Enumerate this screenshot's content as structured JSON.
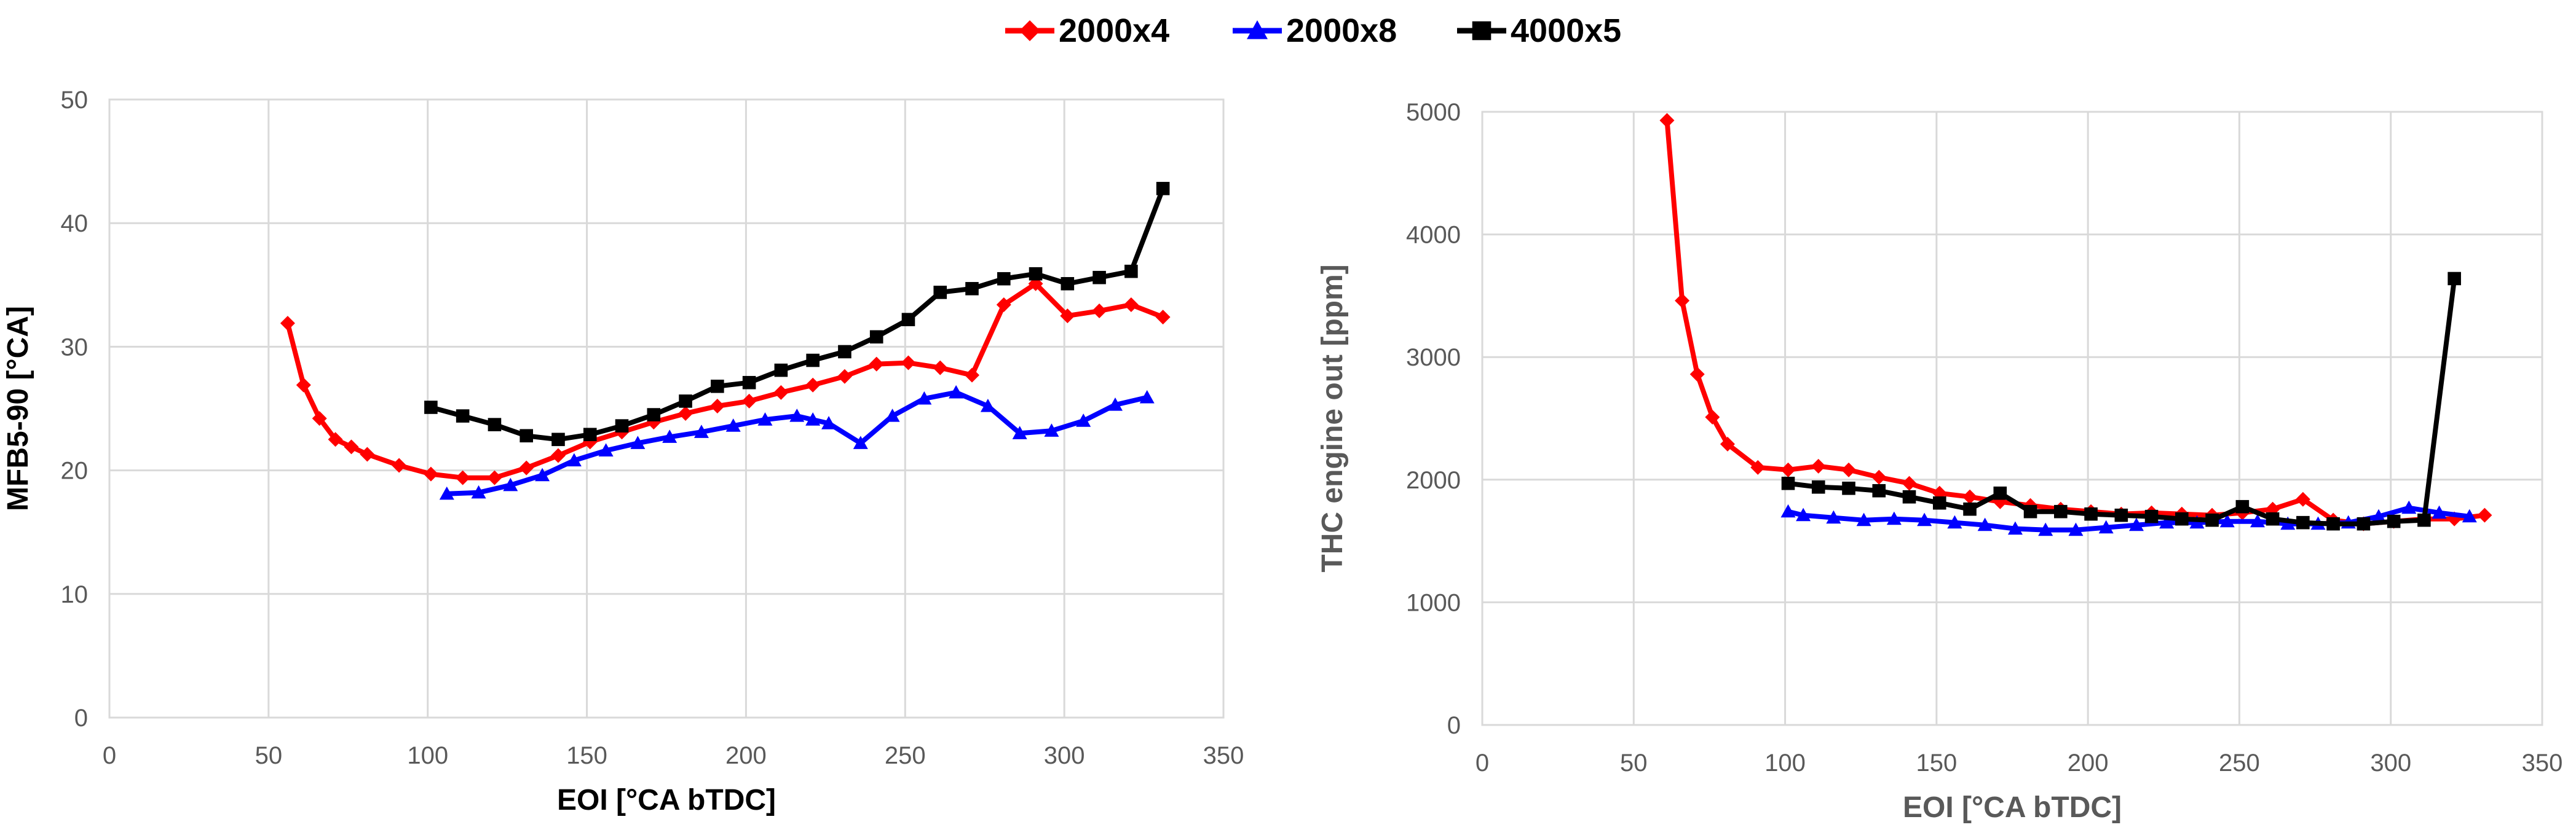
{
  "legend": {
    "entries": [
      {
        "name": "2000x4",
        "color": "#ff0000",
        "marker": "diamond"
      },
      {
        "name": "2000x8",
        "color": "#0000ff",
        "marker": "triangle"
      },
      {
        "name": "4000x5",
        "color": "#000000",
        "marker": "square"
      }
    ],
    "placement": "top-center"
  },
  "chart_data": [
    {
      "type": "line",
      "title": "",
      "xlabel": "EOI [°CA bTDC]",
      "ylabel": "MFB5-90 [°CA]",
      "xlim": [
        0,
        350
      ],
      "ylim": [
        0,
        50
      ],
      "xticks": [
        0,
        50,
        100,
        150,
        200,
        250,
        300,
        350
      ],
      "yticks": [
        0,
        10,
        20,
        30,
        40,
        50
      ],
      "grid": true,
      "series": [
        {
          "name": "2000x4",
          "color": "#ff0000",
          "marker": "diamond",
          "x": [
            56,
            61,
            66,
            71,
            76,
            81,
            91,
            101,
            111,
            121,
            131,
            141,
            151,
            161,
            171,
            181,
            191,
            201,
            211,
            221,
            231,
            241,
            251,
            261,
            271,
            281,
            291,
            301,
            311,
            321,
            331
          ],
          "y": [
            31.9,
            26.9,
            24.2,
            22.5,
            21.9,
            21.3,
            20.4,
            19.7,
            19.4,
            19.4,
            20.2,
            21.2,
            22.3,
            23.1,
            23.9,
            24.6,
            25.2,
            25.6,
            26.3,
            26.9,
            27.6,
            28.6,
            28.7,
            28.3,
            27.7,
            33.4,
            35.1,
            32.5,
            32.9,
            33.4,
            32.4
          ]
        },
        {
          "name": "2000x8",
          "color": "#0000ff",
          "marker": "triangle",
          "x": [
            106,
            116,
            126,
            136,
            146,
            156,
            166,
            176,
            186,
            196,
            206,
            216,
            221,
            226,
            236,
            246,
            256,
            266,
            276,
            286,
            296,
            306,
            316,
            326
          ],
          "y": [
            18.1,
            18.2,
            18.8,
            19.6,
            20.8,
            21.6,
            22.2,
            22.7,
            23.1,
            23.6,
            24.1,
            24.4,
            24.1,
            23.8,
            22.2,
            24.4,
            25.8,
            26.3,
            25.2,
            23.0,
            23.2,
            24.0,
            25.3,
            25.9
          ]
        },
        {
          "name": "4000x5",
          "color": "#000000",
          "marker": "square",
          "x": [
            101,
            111,
            121,
            131,
            141,
            151,
            161,
            171,
            181,
            191,
            201,
            211,
            221,
            231,
            241,
            251,
            261,
            271,
            281,
            291,
            301,
            311,
            321,
            331
          ],
          "y": [
            25.1,
            24.4,
            23.7,
            22.8,
            22.5,
            22.9,
            23.6,
            24.5,
            25.6,
            26.8,
            27.1,
            28.1,
            28.9,
            29.6,
            30.8,
            32.2,
            34.4,
            34.7,
            35.5,
            35.9,
            35.1,
            35.6,
            36.1,
            42.8
          ]
        }
      ]
    },
    {
      "type": "line",
      "title": "",
      "xlabel": "EOI [°CA bTDC]",
      "ylabel": "THC engine out [ppm]",
      "xlim": [
        0,
        350
      ],
      "ylim": [
        0,
        5000
      ],
      "xticks": [
        0,
        50,
        100,
        150,
        200,
        250,
        300,
        350
      ],
      "yticks": [
        0,
        1000,
        2000,
        3000,
        4000,
        5000
      ],
      "grid": true,
      "series": [
        {
          "name": "2000x4",
          "color": "#ff0000",
          "marker": "diamond",
          "x": [
            61,
            66,
            71,
            76,
            81,
            91,
            101,
            111,
            121,
            131,
            141,
            151,
            161,
            171,
            181,
            191,
            201,
            211,
            221,
            231,
            241,
            251,
            261,
            271,
            281,
            291,
            301,
            311,
            321,
            331
          ],
          "y": [
            4930,
            3460,
            2860,
            2510,
            2290,
            2100,
            2080,
            2110,
            2080,
            2020,
            1970,
            1890,
            1860,
            1820,
            1790,
            1760,
            1740,
            1720,
            1730,
            1720,
            1710,
            1730,
            1760,
            1840,
            1670,
            1640,
            1660,
            1680,
            1680,
            1710
          ]
        },
        {
          "name": "2000x8",
          "color": "#0000ff",
          "marker": "triangle",
          "x": [
            101,
            106,
            116,
            126,
            136,
            146,
            156,
            166,
            176,
            186,
            196,
            206,
            216,
            226,
            236,
            246,
            256,
            266,
            276,
            286,
            296,
            306,
            316,
            326
          ],
          "y": [
            1740,
            1710,
            1690,
            1670,
            1680,
            1670,
            1650,
            1630,
            1600,
            1590,
            1590,
            1610,
            1630,
            1650,
            1650,
            1660,
            1660,
            1640,
            1640,
            1650,
            1700,
            1770,
            1730,
            1700
          ]
        },
        {
          "name": "4000x5",
          "color": "#000000",
          "marker": "square",
          "x": [
            101,
            111,
            121,
            131,
            141,
            151,
            161,
            171,
            181,
            191,
            201,
            211,
            221,
            231,
            241,
            251,
            261,
            271,
            281,
            291,
            301,
            311,
            321
          ],
          "y": [
            1970,
            1940,
            1930,
            1910,
            1860,
            1810,
            1760,
            1890,
            1740,
            1740,
            1720,
            1710,
            1700,
            1680,
            1670,
            1780,
            1680,
            1650,
            1640,
            1640,
            1660,
            1670,
            3640
          ]
        }
      ]
    }
  ]
}
